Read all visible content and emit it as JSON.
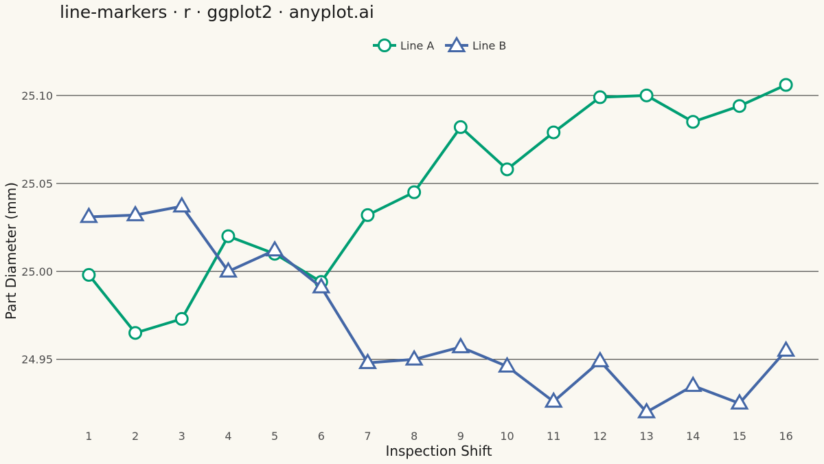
{
  "title": "line-markers · r · ggplot2 · anyplot.ai",
  "chart_data": {
    "type": "line",
    "title": "line-markers · r · ggplot2 · anyplot.ai",
    "xlabel": "Inspection Shift",
    "ylabel": "Part Diameter (mm)",
    "x": [
      1,
      2,
      3,
      4,
      5,
      6,
      7,
      8,
      9,
      10,
      11,
      12,
      13,
      14,
      15,
      16
    ],
    "x_tick_labels": [
      "1",
      "2",
      "3",
      "4",
      "5",
      "6",
      "7",
      "8",
      "9",
      "10",
      "11",
      "12",
      "13",
      "14",
      "15",
      "16"
    ],
    "y_ticks": [
      24.95,
      25.0,
      25.05,
      25.1
    ],
    "y_tick_labels": [
      "24.95",
      "25.00",
      "25.05",
      "25.10"
    ],
    "xlim": [
      0.3,
      16.7
    ],
    "ylim": [
      24.912,
      25.123
    ],
    "grid": "horizontal major",
    "legend_position": "top",
    "series": [
      {
        "name": "Line A",
        "color": "#009E73",
        "marker": "circle",
        "values": [
          24.998,
          24.965,
          24.973,
          25.02,
          25.01,
          24.994,
          25.032,
          25.045,
          25.082,
          25.058,
          25.079,
          25.099,
          25.1,
          25.085,
          25.094,
          25.106
        ]
      },
      {
        "name": "Line B",
        "color": "#4467A6",
        "marker": "triangle",
        "values": [
          25.031,
          25.032,
          25.037,
          25.0,
          25.012,
          24.991,
          24.948,
          24.95,
          24.957,
          24.946,
          24.926,
          24.949,
          24.92,
          24.935,
          24.925,
          24.955
        ]
      }
    ]
  }
}
